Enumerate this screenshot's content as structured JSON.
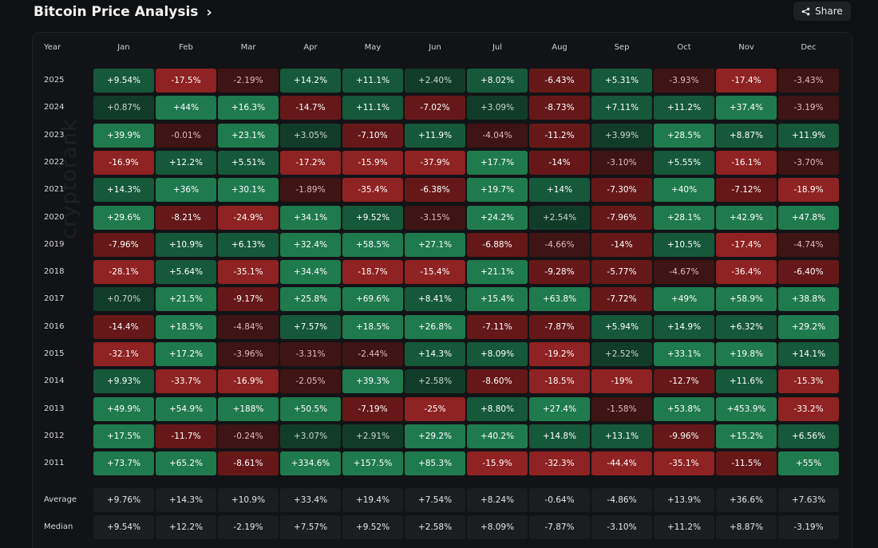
{
  "header": {
    "title": "Bitcoin Price Analysis",
    "share_label": "Share"
  },
  "watermark": "cryptorank",
  "colors": {
    "strong_green": "#1f7a4e",
    "mid_green": "#15583a",
    "weak_green": "#123c2a",
    "strong_red": "#8f2222",
    "mid_red": "#661818",
    "weak_red": "#3f1414",
    "footer_cell": "#1b1d21"
  },
  "table": {
    "year_header": "Year",
    "months": [
      "Jan",
      "Feb",
      "Mar",
      "Apr",
      "May",
      "Jun",
      "Jul",
      "Aug",
      "Sep",
      "Oct",
      "Nov",
      "Dec"
    ],
    "rows": [
      {
        "year": "2025",
        "values": [
          "+9.54%",
          "-17.5%",
          "-2.19%",
          "+14.2%",
          "+11.1%",
          "+2.40%",
          "+8.02%",
          "-6.43%",
          "+5.31%",
          "-3.93%",
          "-17.4%",
          "-3.43%"
        ]
      },
      {
        "year": "2024",
        "values": [
          "+0.87%",
          "+44%",
          "+16.3%",
          "-14.7%",
          "+11.1%",
          "-7.02%",
          "+3.09%",
          "-8.73%",
          "+7.11%",
          "+11.2%",
          "+37.4%",
          "-3.19%"
        ]
      },
      {
        "year": "2023",
        "values": [
          "+39.9%",
          "-0.01%",
          "+23.1%",
          "+3.05%",
          "-7.10%",
          "+11.9%",
          "-4.04%",
          "-11.2%",
          "+3.99%",
          "+28.5%",
          "+8.87%",
          "+11.9%"
        ]
      },
      {
        "year": "2022",
        "values": [
          "-16.9%",
          "+12.2%",
          "+5.51%",
          "-17.2%",
          "-15.9%",
          "-37.9%",
          "+17.7%",
          "-14%",
          "-3.10%",
          "+5.55%",
          "-16.1%",
          "-3.70%"
        ]
      },
      {
        "year": "2021",
        "values": [
          "+14.3%",
          "+36%",
          "+30.1%",
          "-1.89%",
          "-35.4%",
          "-6.38%",
          "+19.7%",
          "+14%",
          "-7.30%",
          "+40%",
          "-7.12%",
          "-18.9%"
        ]
      },
      {
        "year": "2020",
        "values": [
          "+29.6%",
          "-8.21%",
          "-24.9%",
          "+34.1%",
          "+9.52%",
          "-3.15%",
          "+24.2%",
          "+2.54%",
          "-7.96%",
          "+28.1%",
          "+42.9%",
          "+47.8%"
        ]
      },
      {
        "year": "2019",
        "values": [
          "-7.96%",
          "+10.9%",
          "+6.13%",
          "+32.4%",
          "+58.5%",
          "+27.1%",
          "-6.88%",
          "-4.66%",
          "-14%",
          "+10.5%",
          "-17.4%",
          "-4.74%"
        ]
      },
      {
        "year": "2018",
        "values": [
          "-28.1%",
          "+5.64%",
          "-35.1%",
          "+34.4%",
          "-18.7%",
          "-15.4%",
          "+21.1%",
          "-9.28%",
          "-5.77%",
          "-4.67%",
          "-36.4%",
          "-6.40%"
        ]
      },
      {
        "year": "2017",
        "values": [
          "+0.70%",
          "+21.5%",
          "-9.17%",
          "+25.8%",
          "+69.6%",
          "+8.41%",
          "+15.4%",
          "+63.8%",
          "-7.72%",
          "+49%",
          "+58.9%",
          "+38.8%"
        ]
      },
      {
        "year": "2016",
        "values": [
          "-14.4%",
          "+18.5%",
          "-4.84%",
          "+7.57%",
          "+18.5%",
          "+26.8%",
          "-7.11%",
          "-7.87%",
          "+5.94%",
          "+14.9%",
          "+6.32%",
          "+29.2%"
        ]
      },
      {
        "year": "2015",
        "values": [
          "-32.1%",
          "+17.2%",
          "-3.96%",
          "-3.31%",
          "-2.44%",
          "+14.3%",
          "+8.09%",
          "-19.2%",
          "+2.52%",
          "+33.1%",
          "+19.8%",
          "+14.1%"
        ]
      },
      {
        "year": "2014",
        "values": [
          "+9.93%",
          "-33.7%",
          "-16.9%",
          "-2.05%",
          "+39.3%",
          "+2.58%",
          "-8.60%",
          "-18.5%",
          "-19%",
          "-12.7%",
          "+11.6%",
          "-15.3%"
        ]
      },
      {
        "year": "2013",
        "values": [
          "+49.9%",
          "+54.9%",
          "+188%",
          "+50.5%",
          "-7.19%",
          "-25%",
          "+8.80%",
          "+27.4%",
          "-1.58%",
          "+53.8%",
          "+453.9%",
          "-33.2%"
        ]
      },
      {
        "year": "2012",
        "values": [
          "+17.5%",
          "-11.7%",
          "-0.24%",
          "+3.07%",
          "+2.91%",
          "+29.2%",
          "+40.2%",
          "+14.8%",
          "+13.1%",
          "-9.96%",
          "+15.2%",
          "+6.56%"
        ]
      },
      {
        "year": "2011",
        "values": [
          "+73.7%",
          "+65.2%",
          "-8.61%",
          "+334.6%",
          "+157.5%",
          "+85.3%",
          "-15.9%",
          "-32.3%",
          "-44.4%",
          "-35.1%",
          "-11.5%",
          "+55%"
        ]
      }
    ],
    "average": {
      "label": "Average",
      "values": [
        "+9.76%",
        "+14.3%",
        "+10.9%",
        "+33.4%",
        "+19.4%",
        "+7.54%",
        "+8.24%",
        "-0.64%",
        "-4.86%",
        "+13.9%",
        "+36.6%",
        "+7.63%"
      ]
    },
    "median": {
      "label": "Median",
      "values": [
        "+9.54%",
        "+12.2%",
        "-2.19%",
        "+7.57%",
        "+9.52%",
        "+2.58%",
        "+8.09%",
        "-7.87%",
        "-3.10%",
        "+11.2%",
        "+8.87%",
        "-3.19%"
      ]
    }
  }
}
